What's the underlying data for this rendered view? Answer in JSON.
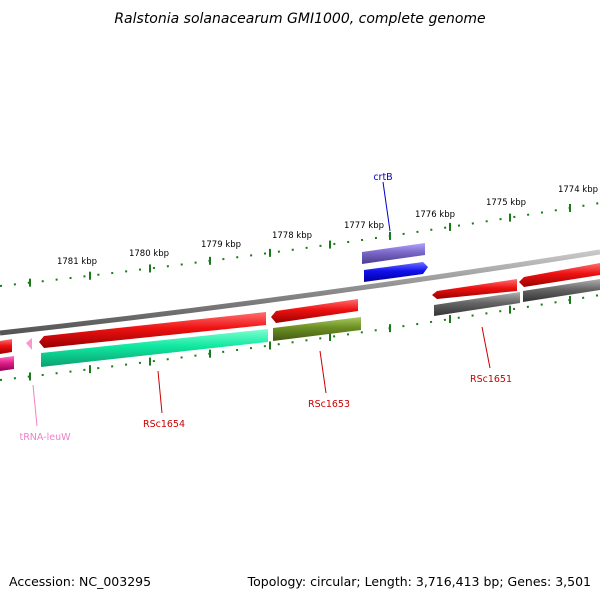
{
  "title": "Ralstonia solanacearum GMI1000, complete genome",
  "footer": {
    "accession": "Accession: NC_003295",
    "topology": "Topology: circular; Length: 3,716,413 bp; Genes: 3,501"
  },
  "colors": {
    "backbone": "#8a8a8a",
    "forward_cds": "#ee1111",
    "reverse_cds": "#ee1111",
    "rrna_teal": "#10e8a0",
    "olive": "#6b8e23",
    "blue": "#1010ee",
    "purple": "#7b68c8",
    "gray": "#666666",
    "trna": "#ff69b4",
    "magenta": "#e0208a",
    "tick": "#1a7a1a",
    "label_red": "#cc0000",
    "label_blue": "#0000cc",
    "label_pink": "#ee82c8"
  },
  "ticks": [
    {
      "label": "1774 kbp"
    },
    {
      "label": "1775 kbp"
    },
    {
      "label": "1776 kbp"
    },
    {
      "label": "1777 kbp"
    },
    {
      "label": "1778 kbp"
    },
    {
      "label": "1779 kbp"
    },
    {
      "label": "1780 kbp"
    },
    {
      "label": "1781 kbp"
    }
  ],
  "features": [
    {
      "name": "RSc1654",
      "type": "CDS",
      "color_key": "label_red"
    },
    {
      "name": "RSc1653",
      "type": "CDS",
      "color_key": "label_red"
    },
    {
      "name": "RSc1651",
      "type": "CDS",
      "color_key": "label_red"
    },
    {
      "name": "crtB",
      "type": "gene",
      "color_key": "label_blue"
    },
    {
      "name": "tRNA-leuW",
      "type": "tRNA",
      "color_key": "label_pink"
    }
  ]
}
